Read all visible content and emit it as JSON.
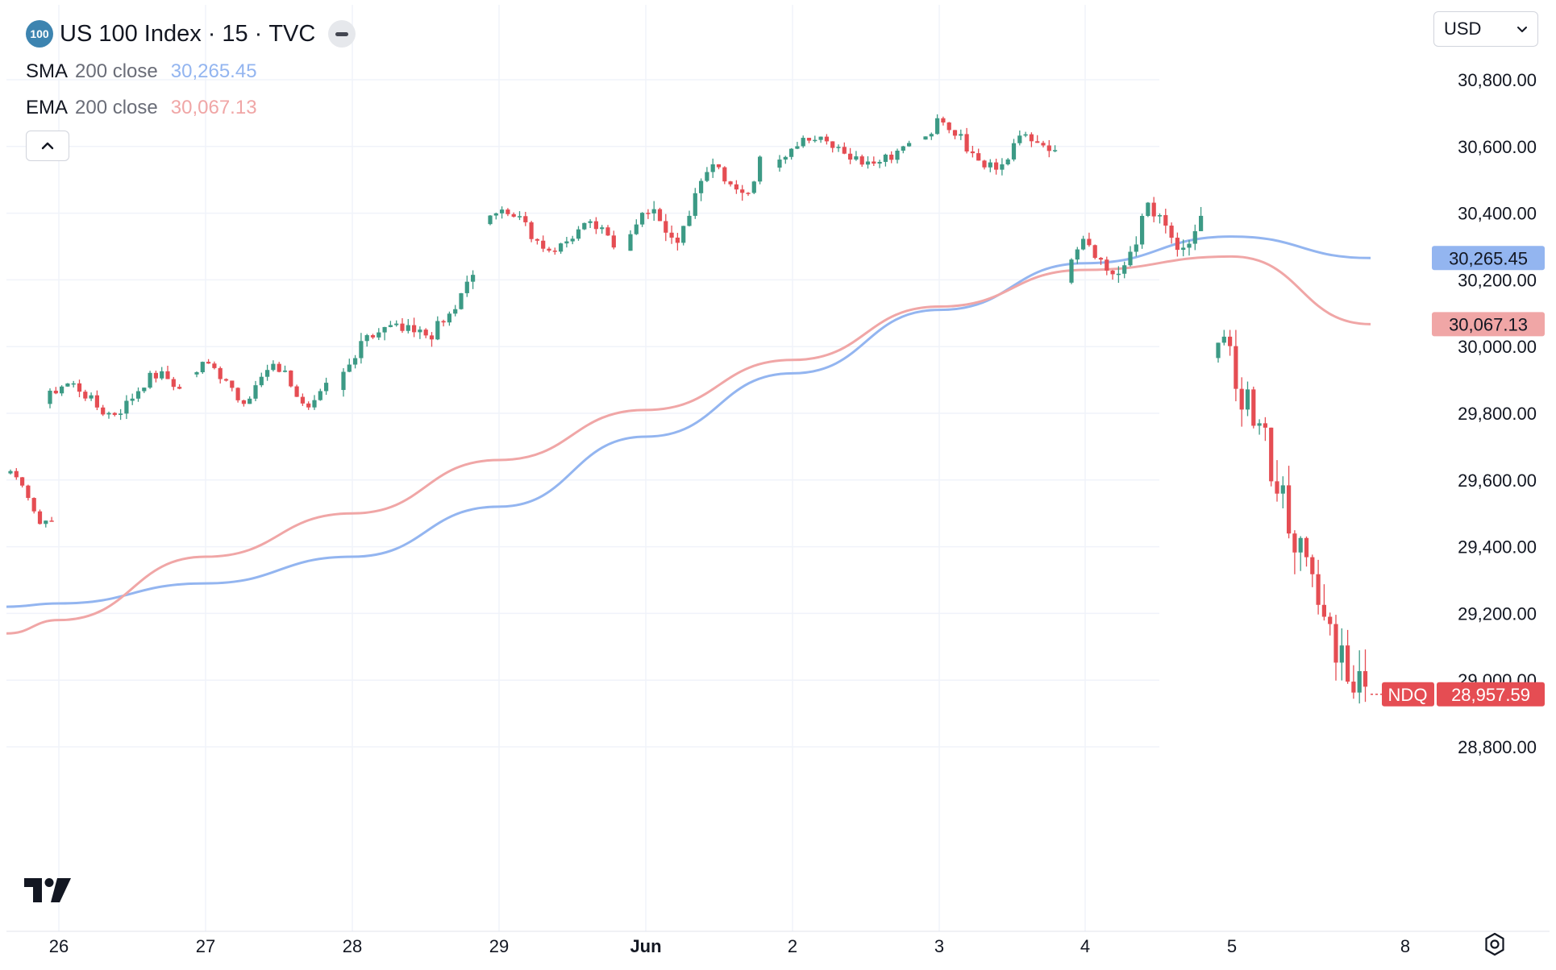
{
  "header": {
    "logo_text": "100",
    "symbol": "US 100 Index",
    "interval": "15",
    "exchange": "TVC",
    "separator": "·"
  },
  "indicators": [
    {
      "name": "SMA",
      "params": "200 close",
      "value": "30,265.45",
      "color": "#93b5f0"
    },
    {
      "name": "EMA",
      "params": "200 close",
      "value": "30,067.13",
      "color": "#f0a6a6"
    }
  ],
  "currency": {
    "selected": "USD"
  },
  "price_labels": {
    "sma": "30,265.45",
    "ema": "30,067.13",
    "symbol_tag": "NDQ",
    "last": "28,957.59"
  },
  "colors": {
    "up": "#26a69a",
    "up_candle": "#3c9a85",
    "down": "#e54d53",
    "sma": "#93b5f0",
    "ema": "#f0a6a6",
    "grid": "#f0f3fa",
    "axis_text": "#131722"
  },
  "icons": {
    "collapse": "chevron-up-icon",
    "currency_dropdown": "chevron-down-icon",
    "tradingview_logo": "tradingview-logo",
    "settings": "settings-gear-icon",
    "title_menu": "more-icon"
  },
  "chart_data": {
    "type": "candlestick",
    "title": "US 100 Index · 15 · TVC",
    "y_axis": {
      "ticks": [
        28800,
        29000,
        29200,
        29400,
        29600,
        29800,
        30000,
        30200,
        30400,
        30600,
        30800
      ],
      "tick_labels": [
        "28,800.00",
        "29,000.00",
        "29,200.00",
        "29,400.00",
        "29,600.00",
        "29,800.00",
        "30,000.00",
        "30,200.00",
        "30,400.00",
        "30,600.00",
        "30,800.00"
      ],
      "range": [
        28740,
        30960
      ]
    },
    "x_axis": {
      "tick_labels": [
        "26",
        "27",
        "28",
        "29",
        "Jun",
        "2",
        "3",
        "4",
        "5",
        "8"
      ],
      "bold_labels": [
        "Jun"
      ],
      "range": [
        "May 25 (partial)",
        "Jun 5"
      ]
    },
    "grid": true,
    "sessions": [
      {
        "label": "May 25",
        "open": 29620,
        "close": 29475,
        "high": 29640,
        "low": 29450
      },
      {
        "label": "26",
        "open": 29830,
        "close": 29870,
        "high": 30040,
        "low": 29750
      },
      {
        "label": "27",
        "open": 29900,
        "close": 29880,
        "high": 30090,
        "low": 29810
      },
      {
        "label": "28",
        "open": 29870,
        "close": 30215,
        "high": 30260,
        "low": 29850
      },
      {
        "label": "29",
        "open": 30380,
        "close": 30300,
        "high": 30470,
        "low": 30200
      },
      {
        "label": "Jun 1",
        "open": 30300,
        "close": 30570,
        "high": 30650,
        "low": 30230
      },
      {
        "label": "2",
        "open": 30550,
        "close": 30620,
        "high": 30660,
        "low": 30370
      },
      {
        "label": "3",
        "open": 30620,
        "close": 30570,
        "high": 30760,
        "low": 30440
      },
      {
        "label": "4",
        "open": 30200,
        "close": 30410,
        "high": 30540,
        "low": 30090
      },
      {
        "label": "5",
        "open": 30020,
        "close": 28957.59,
        "high": 30050,
        "low": 28930
      }
    ],
    "series": [
      {
        "name": "SMA 200 close",
        "last": 30265.45,
        "points": [
          [
            "May 25",
            29220
          ],
          [
            "26",
            29230
          ],
          [
            "27",
            29290
          ],
          [
            "28",
            29370
          ],
          [
            "29",
            29520
          ],
          [
            "Jun 1",
            29730
          ],
          [
            "2",
            29920
          ],
          [
            "3",
            30110
          ],
          [
            "4",
            30250
          ],
          [
            "5",
            30330
          ],
          [
            "5 end",
            30265.45
          ]
        ]
      },
      {
        "name": "EMA 200 close",
        "last": 30067.13,
        "points": [
          [
            "May 25",
            29140
          ],
          [
            "26",
            29180
          ],
          [
            "27",
            29370
          ],
          [
            "28",
            29500
          ],
          [
            "29",
            29660
          ],
          [
            "Jun 1",
            29810
          ],
          [
            "2",
            29960
          ],
          [
            "3",
            30120
          ],
          [
            "4",
            30230
          ],
          [
            "5",
            30270
          ],
          [
            "5 end",
            30067.13
          ]
        ]
      }
    ],
    "last_price": 28957.59
  }
}
